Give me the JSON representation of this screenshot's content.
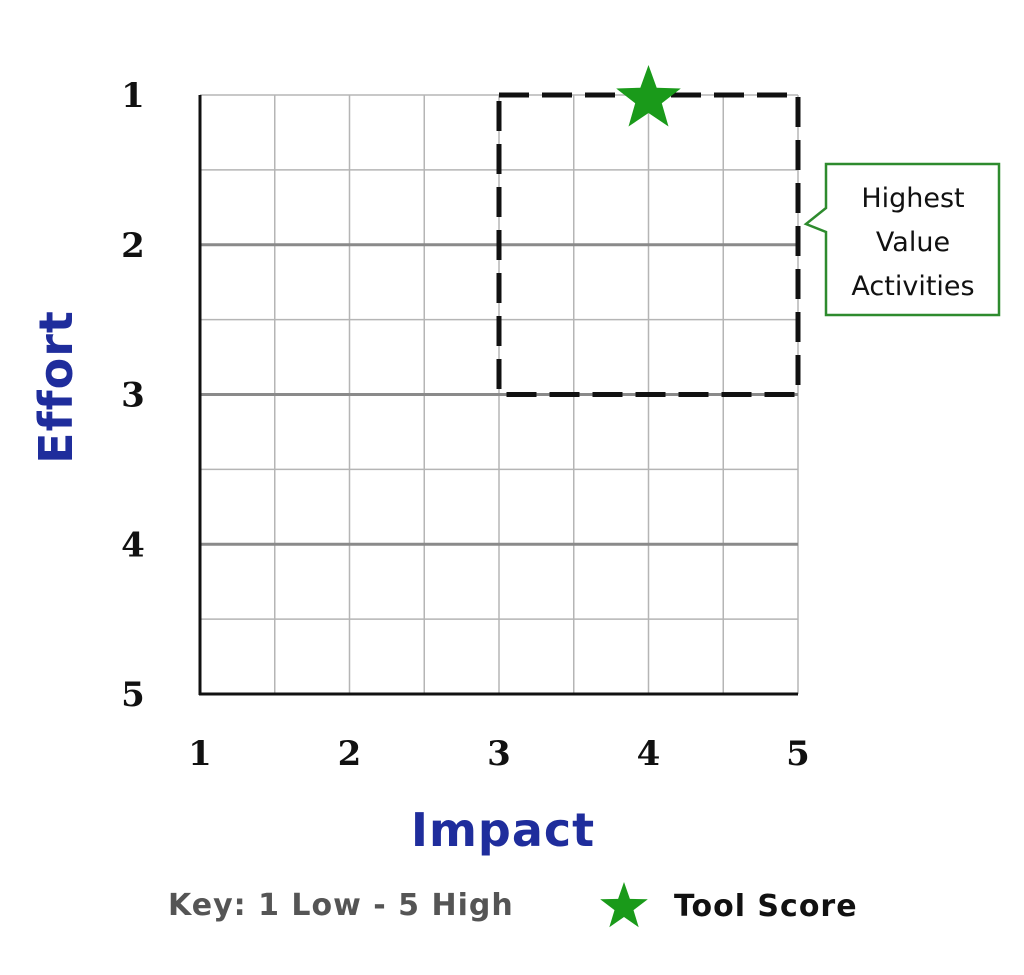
{
  "chart_data": {
    "type": "scatter",
    "xlabel": "Impact",
    "ylabel": "Effort",
    "x_ticks": [
      "1",
      "2",
      "3",
      "4",
      "5"
    ],
    "y_ticks": [
      "1",
      "2",
      "3",
      "4",
      "5"
    ],
    "xlim": [
      1,
      5
    ],
    "ylim": [
      1,
      5
    ],
    "y_axis_inverted": true,
    "grid": true,
    "grid_step": 0.5,
    "points": [
      {
        "x": 4,
        "y": 1,
        "marker": "star",
        "color": "#1a9a1a"
      }
    ],
    "highlight_region": {
      "x_range": [
        3,
        5
      ],
      "y_range": [
        1,
        3
      ],
      "style": "dashed",
      "label_lines": [
        "Highest",
        "Value",
        "Activities"
      ],
      "label_border_color": "#2e8b2e"
    },
    "key": {
      "text": "Key: 1 Low - 5 High",
      "marker_label": "Tool Score",
      "text_color": "#555555",
      "marker_label_color": "#111111"
    },
    "colors": {
      "axis_title": "#1f2d9c",
      "grid_minor": "#b5b5b5",
      "grid_major": "#8a8a8a",
      "star": "#1a9a1a"
    }
  }
}
